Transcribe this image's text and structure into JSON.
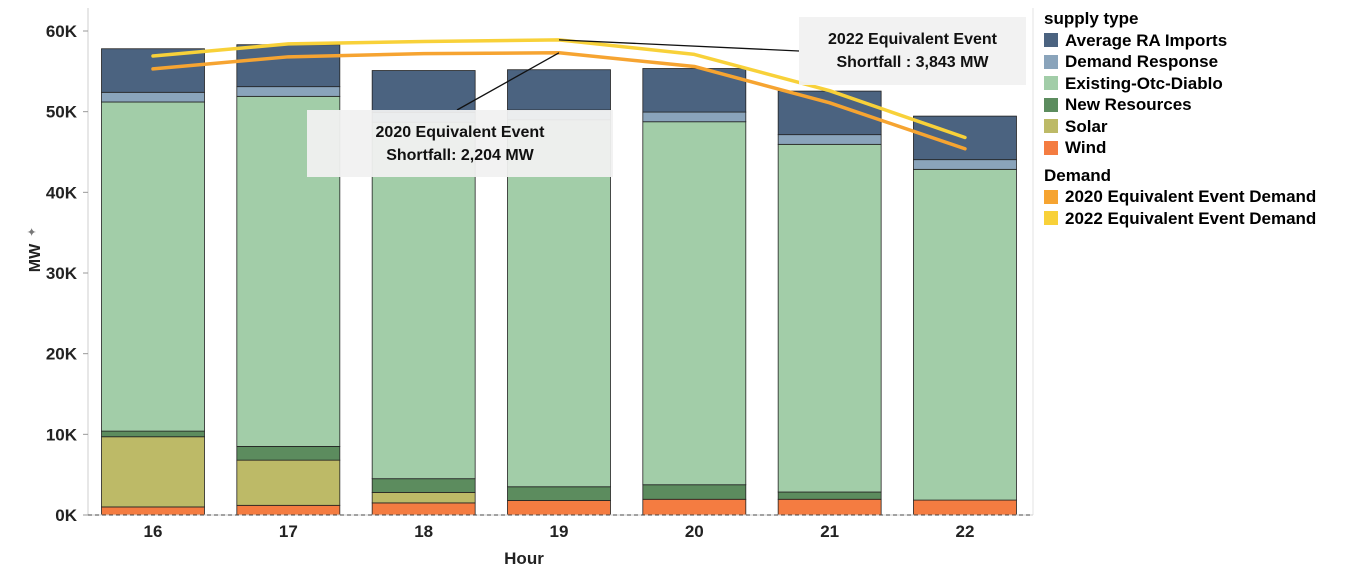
{
  "chart_data": {
    "type": "bar",
    "stacked": true,
    "title": "",
    "xlabel": "Hour",
    "ylabel": "MW",
    "ylim": [
      0,
      62000
    ],
    "y_ticks": [
      {
        "value": 0,
        "label": "0K"
      },
      {
        "value": 10000,
        "label": "10K"
      },
      {
        "value": 20000,
        "label": "20K"
      },
      {
        "value": 30000,
        "label": "30K"
      },
      {
        "value": 40000,
        "label": "40K"
      },
      {
        "value": 50000,
        "label": "50K"
      },
      {
        "value": 60000,
        "label": "60K"
      }
    ],
    "categories": [
      "16",
      "17",
      "18",
      "19",
      "20",
      "21",
      "22"
    ],
    "series": [
      {
        "name": "Wind",
        "color": "#f47c41",
        "values": [
          1000,
          1200,
          1500,
          1800,
          1950,
          1950,
          1850
        ]
      },
      {
        "name": "Solar",
        "color": "#bdba67",
        "values": [
          8700,
          5600,
          1300,
          0,
          0,
          0,
          0
        ]
      },
      {
        "name": "New Resources",
        "color": "#5c8c5e",
        "values": [
          700,
          1700,
          1700,
          1700,
          1800,
          900,
          0
        ]
      },
      {
        "name": "Existing-Otc-Diablo",
        "color": "#a2cda8",
        "values": [
          40800,
          43400,
          44200,
          45500,
          45000,
          43100,
          41000
        ]
      },
      {
        "name": "Demand Response",
        "color": "#8aa4bb",
        "values": [
          1200,
          1200,
          1200,
          1200,
          1200,
          1200,
          1200
        ]
      },
      {
        "name": "Average RA Imports",
        "color": "#4b6380",
        "values": [
          5400,
          5200,
          5200,
          5000,
          5400,
          5400,
          5400
        ]
      }
    ],
    "lines": [
      {
        "name": "2020 Equivalent Event Demand",
        "color": "#f6a431",
        "values": [
          55300,
          56800,
          57200,
          57300,
          55600,
          51100,
          45400
        ]
      },
      {
        "name": "2022 Equivalent Event Demand",
        "color": "#f8d139",
        "values": [
          56900,
          58400,
          58700,
          58900,
          57100,
          52600,
          46800
        ]
      }
    ],
    "annotations": [
      {
        "text_line1": "2022 Equivalent Event",
        "text_line2": "Shortfall : 3,843 MW",
        "category": "19",
        "value": 58900
      },
      {
        "text_line1": "2020 Equivalent Event",
        "text_line2": "Shortfall: 2,204 MW",
        "category": "19",
        "value": 57300
      }
    ],
    "legend_position": "right",
    "grid": false
  },
  "legend": {
    "supply_header": "supply type",
    "supply_items": [
      {
        "label": "Average RA Imports",
        "color": "#4b6380"
      },
      {
        "label": "Demand Response",
        "color": "#8aa4bb"
      },
      {
        "label": "Existing-Otc-Diablo",
        "color": "#a2cda8"
      },
      {
        "label": "New Resources",
        "color": "#5c8c5e"
      },
      {
        "label": "Solar",
        "color": "#bdba67"
      },
      {
        "label": "Wind",
        "color": "#f47c41"
      }
    ],
    "demand_header": "Demand",
    "demand_items": [
      {
        "label": "2020 Equivalent Event Demand",
        "color": "#f6a431"
      },
      {
        "label": "2022 Equivalent Event Demand",
        "color": "#f8d139"
      }
    ]
  }
}
